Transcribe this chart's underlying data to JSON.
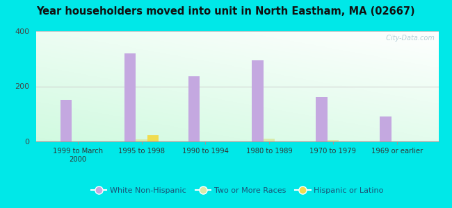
{
  "title": "Year householders moved into unit in North Eastham, MA (02667)",
  "categories": [
    "1999 to March\n2000",
    "1995 to 1998",
    "1990 to 1994",
    "1980 to 1989",
    "1970 to 1979",
    "1969 or earlier"
  ],
  "white_non_hispanic": [
    152,
    320,
    237,
    295,
    160,
    90
  ],
  "two_or_more_races": [
    0,
    7,
    0,
    10,
    5,
    0
  ],
  "hispanic_or_latino": [
    0,
    22,
    0,
    0,
    0,
    0
  ],
  "bar_color_white": "#c4a8e0",
  "bar_color_two": "#d8eaaa",
  "bar_color_hisp": "#f0dc50",
  "bg_outer": "#00e8e8",
  "title_color": "#111111",
  "ylim": [
    0,
    400
  ],
  "yticks": [
    0,
    200,
    400
  ],
  "legend_labels": [
    "White Non-Hispanic",
    "Two or More Races",
    "Hispanic or Latino"
  ],
  "watermark": "  City-Data.com"
}
